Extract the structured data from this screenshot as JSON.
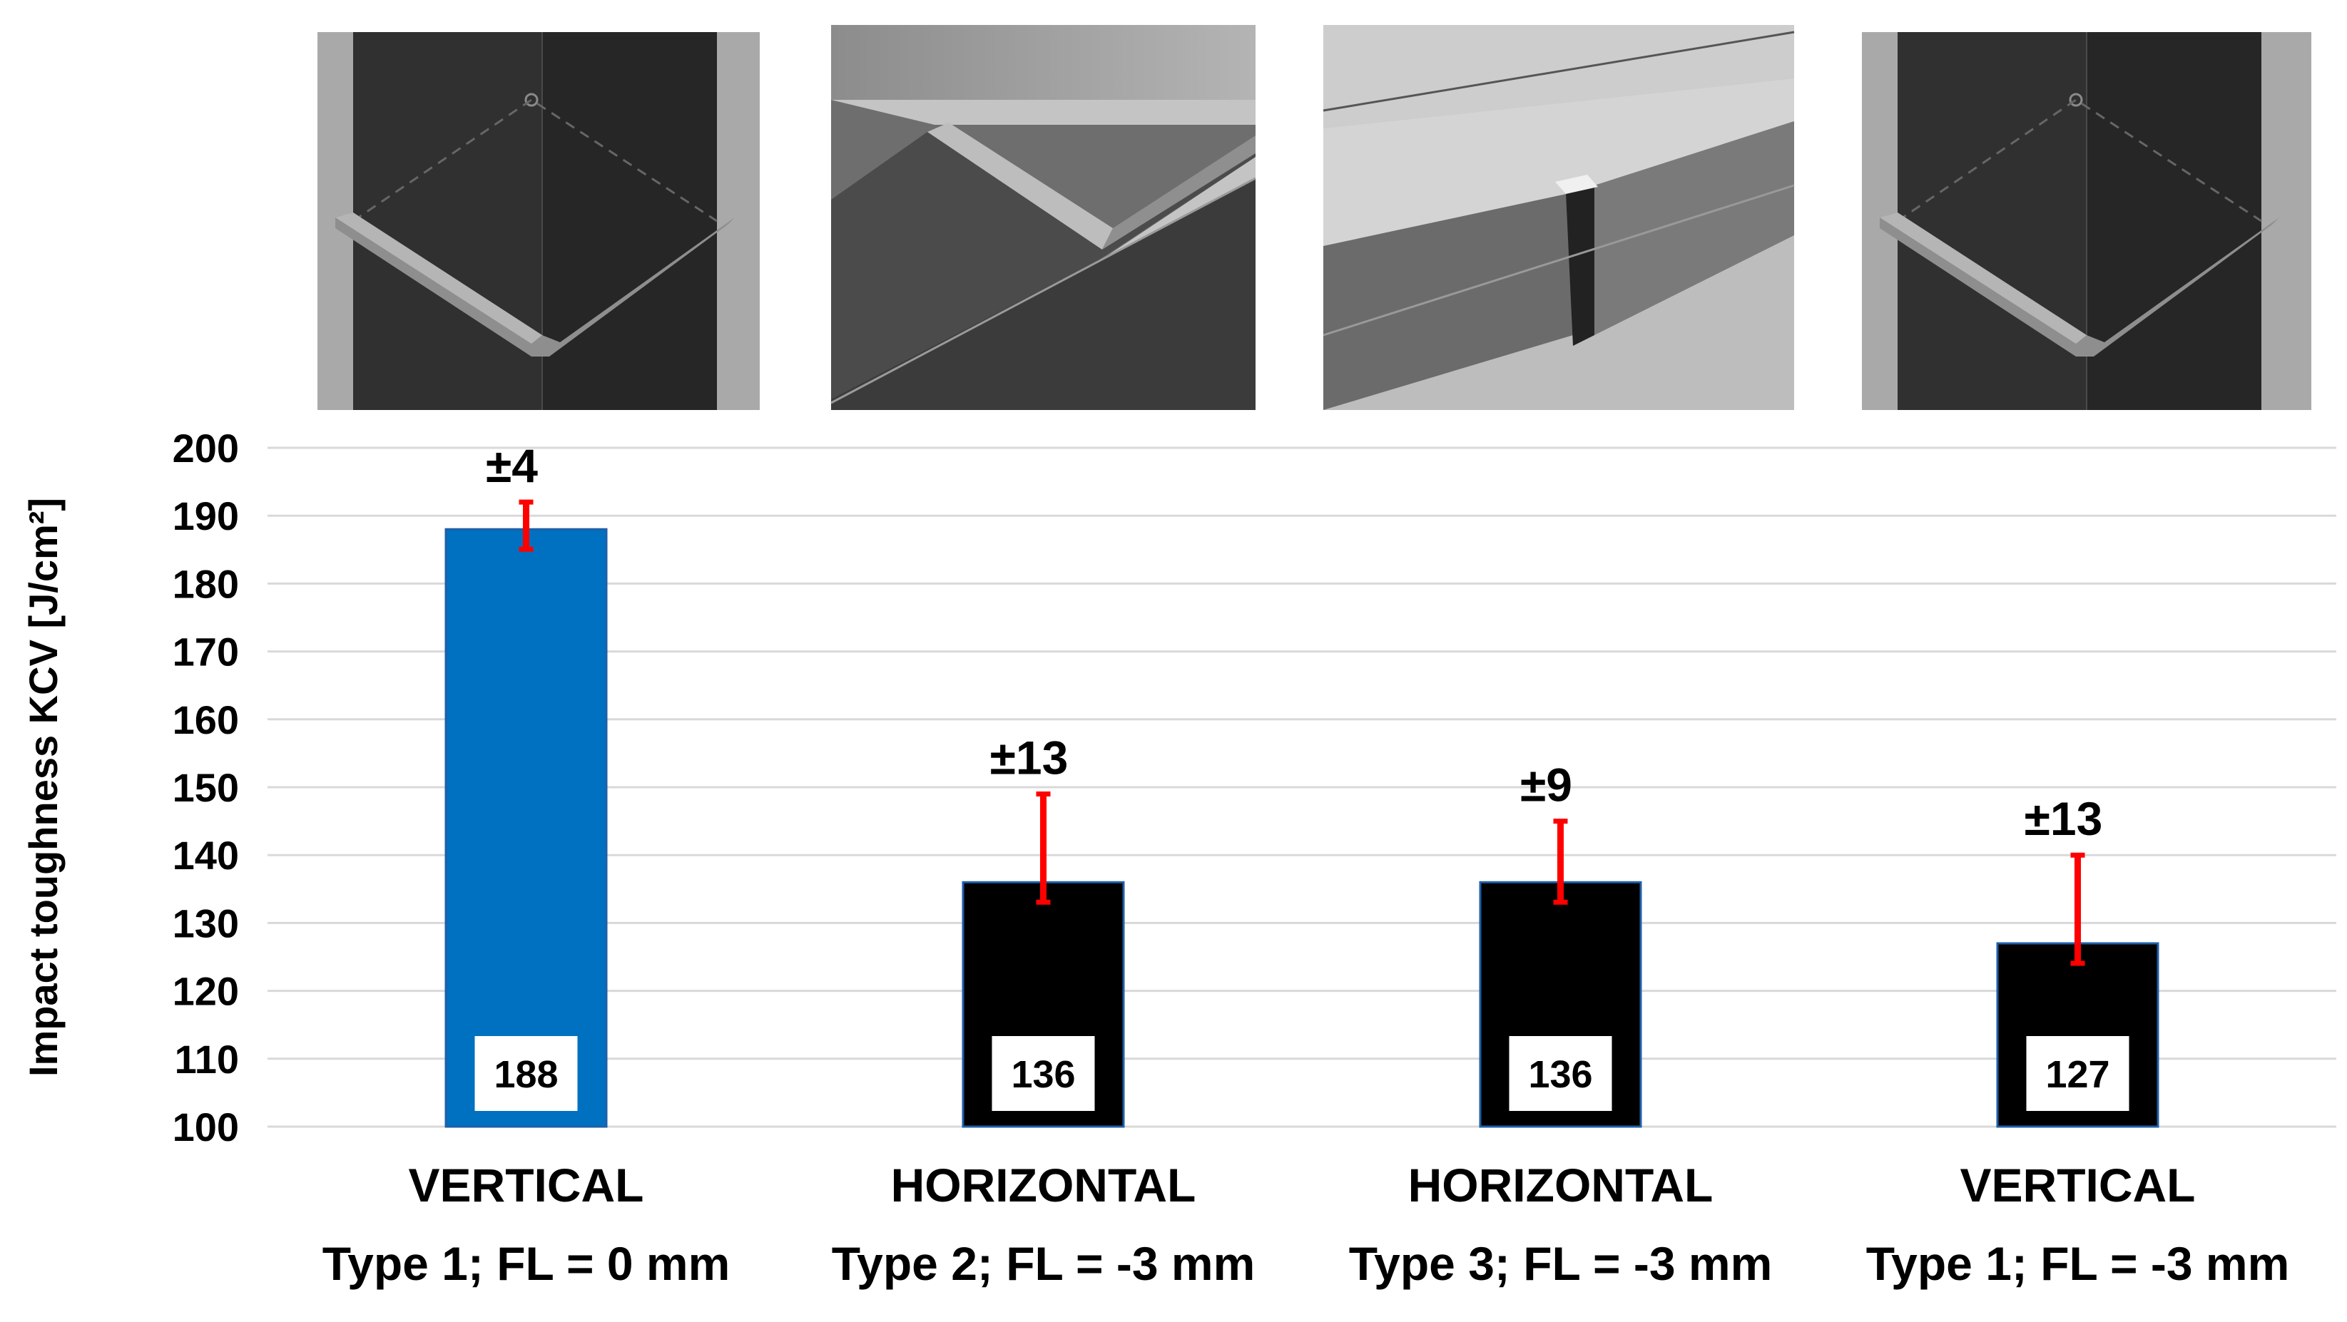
{
  "chart_data": {
    "type": "bar",
    "ylabel": "Impact toughness KCV [J/cm²]",
    "ylim": [
      100,
      200
    ],
    "yticks": [
      100,
      110,
      120,
      130,
      140,
      150,
      160,
      170,
      180,
      190,
      200
    ],
    "grid": true,
    "categories": [
      [
        "VERTICAL",
        "Type 1; FL = 0 mm"
      ],
      [
        "HORIZONTAL",
        "Type 2; FL = -3 mm"
      ],
      [
        "HORIZONTAL",
        "Type 3; FL = -3 mm"
      ],
      [
        "VERTICAL",
        "Type 1; FL = -3 mm"
      ]
    ],
    "values": [
      188,
      136,
      136,
      127
    ],
    "errors": [
      4,
      13,
      9,
      13
    ],
    "error_labels": [
      "±4",
      "±13",
      "±9",
      "±13"
    ],
    "value_labels": [
      "188",
      "136",
      "136",
      "127"
    ],
    "bar_colors": [
      "#0070C0",
      "#000000",
      "#000000",
      "#000000"
    ],
    "error_color": "#FF0000",
    "thumbnails": [
      "vertical-notch-specimen",
      "horizontal-notch-specimen",
      "horizontal-notch-specimen",
      "vertical-notch-specimen"
    ]
  }
}
